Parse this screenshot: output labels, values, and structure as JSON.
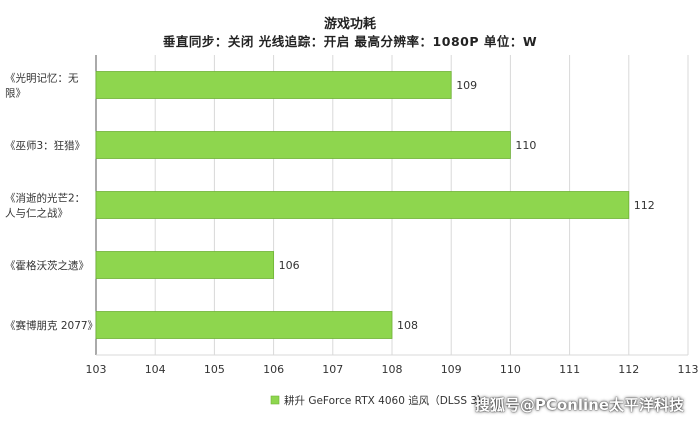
{
  "title": "游戏功耗",
  "subtitle": "垂直同步：关闭  光线追踪：开启  最高分辨率：1080P  单位：W",
  "watermark": "搜狐号@PConline太平洋科技",
  "colors": {
    "bar": "#8ed64e",
    "bar_stroke": "#6fb236",
    "grid": "#d9d9d9",
    "axis": "#555555",
    "text": "#333333"
  },
  "chart_data": {
    "type": "bar",
    "orientation": "horizontal",
    "categories": [
      [
        "《光明记忆：无",
        "限》"
      ],
      [
        "《巫师3：狂猎》"
      ],
      [
        "《消逝的光芒2：",
        "人与仁之战》"
      ],
      [
        "《霍格沃茨之遗》"
      ],
      [
        "《赛博朋克 2077》"
      ]
    ],
    "series": [
      {
        "name": "耕升 GeForce RTX 4060 追风（DLSS 3）",
        "values": [
          109,
          110,
          112,
          106,
          108
        ]
      }
    ],
    "xlim": [
      103,
      113
    ],
    "xticks": [
      103,
      104,
      105,
      106,
      107,
      108,
      109,
      110,
      111,
      112,
      113
    ],
    "grid": true,
    "legend_position": "bottom",
    "data_labels": true
  }
}
